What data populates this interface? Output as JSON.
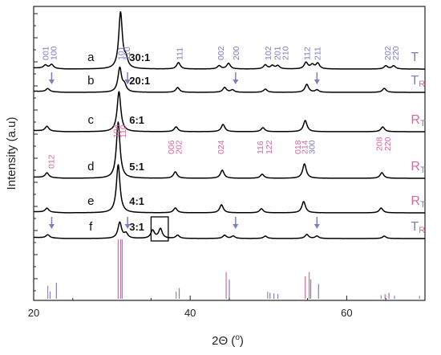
{
  "chart_data": {
    "type": "line",
    "xlabel": "2Θ (°)",
    "xlabel_parts": {
      "main": "2Θ (",
      "deg": "o",
      "close": ")"
    },
    "ylabel": "Intensity (a.u)",
    "xlim": [
      20,
      70
    ],
    "x_ticks": [
      20,
      40,
      60
    ],
    "grid": false,
    "colors": {
      "tetragonal": "#7b7fc0",
      "rhombohedral": "#d46aa0",
      "curve": "#000000",
      "annotation": "#7b7fc0"
    },
    "series": [
      {
        "letter": "a",
        "ratio": "30:1",
        "phase_main": "T",
        "phase_sub": "",
        "main_color": "tetragonal",
        "sub_color": "tetragonal",
        "peaks": [
          [
            21.5,
            4
          ],
          [
            22.3,
            5
          ],
          [
            31.1,
            70
          ],
          [
            31.8,
            10
          ],
          [
            38.5,
            8
          ],
          [
            43.7,
            4
          ],
          [
            44.9,
            7
          ],
          [
            49.6,
            5
          ],
          [
            50.5,
            4
          ],
          [
            51.2,
            4
          ],
          [
            54.8,
            8
          ],
          [
            55.6,
            5
          ],
          [
            56.3,
            7
          ],
          [
            65.0,
            4
          ],
          [
            66.0,
            4
          ]
        ]
      },
      {
        "letter": "b",
        "ratio": "20:1",
        "phase_main": "T",
        "phase_sub": "R",
        "main_color": "tetragonal",
        "sub_color": "rhombohedral",
        "peaks": [
          [
            21.8,
            4
          ],
          [
            31.0,
            30
          ],
          [
            31.6,
            8
          ],
          [
            38.4,
            6
          ],
          [
            44.4,
            6
          ],
          [
            45.4,
            3
          ],
          [
            49.6,
            4
          ],
          [
            54.9,
            10
          ],
          [
            56.2,
            3
          ],
          [
            64.8,
            5
          ]
        ]
      },
      {
        "letter": "c",
        "ratio": "6:1",
        "phase_main": "R",
        "phase_sub": "T",
        "main_color": "rhombohedral",
        "sub_color": "tetragonal",
        "peaks": [
          [
            21.7,
            6
          ],
          [
            30.9,
            50
          ],
          [
            38.2,
            6
          ],
          [
            44.2,
            9
          ],
          [
            49.3,
            5
          ],
          [
            54.7,
            14
          ],
          [
            64.6,
            6
          ]
        ]
      },
      {
        "letter": "d",
        "ratio": "5:1",
        "phase_main": "R",
        "phase_sub": "T",
        "main_color": "rhombohedral",
        "sub_color": "tetragonal",
        "peaks": [
          [
            21.7,
            6
          ],
          [
            30.8,
            70
          ],
          [
            38.1,
            8
          ],
          [
            44.1,
            10
          ],
          [
            49.2,
            5
          ],
          [
            54.6,
            18
          ],
          [
            64.5,
            7
          ]
        ]
      },
      {
        "letter": "e",
        "ratio": "4:1",
        "phase_main": "R",
        "phase_sub": "T",
        "main_color": "rhombohedral",
        "sub_color": "tetragonal",
        "peaks": [
          [
            21.7,
            5
          ],
          [
            30.8,
            60
          ],
          [
            38.1,
            6
          ],
          [
            44.0,
            10
          ],
          [
            49.1,
            5
          ],
          [
            54.5,
            14
          ],
          [
            64.4,
            6
          ]
        ]
      },
      {
        "letter": "f",
        "ratio": "3:1",
        "phase_main": "T",
        "phase_sub": "R",
        "main_color": "tetragonal",
        "sub_color": "rhombohedral",
        "peaks": [
          [
            21.8,
            4
          ],
          [
            31.0,
            20
          ],
          [
            31.8,
            6
          ],
          [
            35.2,
            10
          ],
          [
            36.2,
            12
          ],
          [
            38.4,
            4
          ],
          [
            44.4,
            4
          ],
          [
            45.5,
            3
          ],
          [
            49.6,
            3
          ],
          [
            54.9,
            5
          ],
          [
            56.2,
            3
          ],
          [
            64.8,
            3
          ]
        ]
      }
    ],
    "hkl_tetragonal": [
      {
        "label": "001",
        "x": 21.6
      },
      {
        "label": "100",
        "x": 22.6
      },
      {
        "label": "101",
        "x": 31.2
      },
      {
        "label": "110",
        "x": 32.0
      },
      {
        "label": "111",
        "x": 38.7
      },
      {
        "label": "002",
        "x": 44.0
      },
      {
        "label": "200",
        "x": 45.9
      },
      {
        "label": "102",
        "x": 50.0
      },
      {
        "label": "201",
        "x": 51.2
      },
      {
        "label": "210",
        "x": 52.2
      },
      {
        "label": "112",
        "x": 55.0
      },
      {
        "label": "211",
        "x": 56.3
      },
      {
        "label": "202",
        "x": 65.3
      },
      {
        "label": "220",
        "x": 66.3
      }
    ],
    "hkl_rhombohedral": [
      {
        "label": "012",
        "x": 22.3,
        "color": "rhombohedral"
      },
      {
        "label": "104",
        "x": 30.6,
        "color": "rhombohedral"
      },
      {
        "label": "110",
        "x": 31.5,
        "color": "rhombohedral"
      },
      {
        "label": "006",
        "x": 37.6,
        "color": "rhombohedral"
      },
      {
        "label": "202",
        "x": 38.6,
        "color": "rhombohedral"
      },
      {
        "label": "024",
        "x": 44.0,
        "color": "rhombohedral"
      },
      {
        "label": "116",
        "x": 49.0,
        "color": "rhombohedral"
      },
      {
        "label": "122",
        "x": 50.1,
        "color": "rhombohedral"
      },
      {
        "label": "018",
        "x": 53.8,
        "color": "rhombohedral"
      },
      {
        "label": "214",
        "x": 54.7,
        "color": "rhombohedral"
      },
      {
        "label": "300",
        "x": 55.6,
        "color": "tetragonal"
      },
      {
        "label": "208",
        "x": 64.2,
        "color": "rhombohedral"
      },
      {
        "label": "220",
        "x": 65.3,
        "color": "rhombohedral"
      }
    ],
    "arrows": [
      {
        "x": 22.3,
        "curve": "b"
      },
      {
        "x": 32.0,
        "curve": "b"
      },
      {
        "x": 45.8,
        "curve": "b"
      },
      {
        "x": 56.2,
        "curve": "b"
      },
      {
        "x": 22.3,
        "curve": "f"
      },
      {
        "x": 32.0,
        "curve": "f"
      },
      {
        "x": 45.8,
        "curve": "f"
      },
      {
        "x": 56.2,
        "curve": "f"
      }
    ],
    "highlight_box": {
      "x_range": [
        35.0,
        37.2
      ],
      "curve": "f"
    },
    "reference_tetragonal": [
      {
        "x": 22.1,
        "h": 0.12
      },
      {
        "x": 22.9,
        "h": 0.27
      },
      {
        "x": 31.3,
        "h": 1.0
      },
      {
        "x": 38.6,
        "h": 0.18
      },
      {
        "x": 45.0,
        "h": 0.32
      },
      {
        "x": 50.2,
        "h": 0.1
      },
      {
        "x": 50.7,
        "h": 0.09
      },
      {
        "x": 51.2,
        "h": 0.08
      },
      {
        "x": 55.4,
        "h": 0.33
      },
      {
        "x": 56.4,
        "h": 0.25
      },
      {
        "x": 65.4,
        "h": 0.1
      },
      {
        "x": 66.1,
        "h": 0.05
      }
    ],
    "reference_rhombohedral": [
      {
        "x": 21.8,
        "h": 0.22
      },
      {
        "x": 30.8,
        "h": 1.0
      },
      {
        "x": 31.1,
        "h": 1.0
      },
      {
        "x": 38.2,
        "h": 0.12
      },
      {
        "x": 44.6,
        "h": 0.45
      },
      {
        "x": 49.9,
        "h": 0.12
      },
      {
        "x": 54.7,
        "h": 0.38
      },
      {
        "x": 55.2,
        "h": 0.45
      },
      {
        "x": 64.4,
        "h": 0.06
      },
      {
        "x": 64.9,
        "h": 0.08
      },
      {
        "x": 69.3,
        "h": 0.05
      }
    ]
  }
}
